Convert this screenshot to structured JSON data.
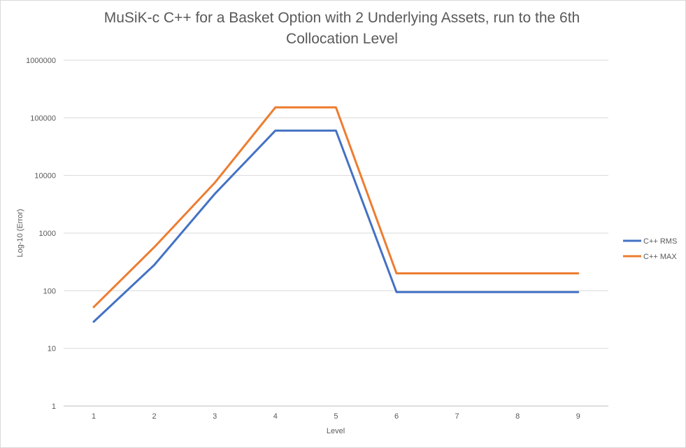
{
  "chart_data": {
    "type": "line",
    "title_lines": [
      "MuSiK-c C++ for a Basket Option with 2 Underlying Assets, run to the 6th",
      "Collocation Level"
    ],
    "xlabel": "Level",
    "ylabel": "Log-10 (Error)",
    "y_scale": "log10",
    "ylim": [
      1,
      1000000
    ],
    "y_ticks": [
      "1",
      "10",
      "100",
      "1000",
      "10000",
      "100000",
      "1000000"
    ],
    "categories": [
      "1",
      "2",
      "3",
      "4",
      "5",
      "6",
      "7",
      "8",
      "9"
    ],
    "grid": "horizontal",
    "legend_position": "right",
    "series": [
      {
        "name": "C++ RMS",
        "color": "#4472c4",
        "values": [
          29,
          280,
          4800,
          60000,
          60000,
          95,
          95,
          95,
          95
        ]
      },
      {
        "name": "C++ MAX",
        "color": "#ed7d31",
        "values": [
          52,
          570,
          7500,
          152000,
          152000,
          200,
          200,
          200,
          200
        ]
      }
    ]
  }
}
